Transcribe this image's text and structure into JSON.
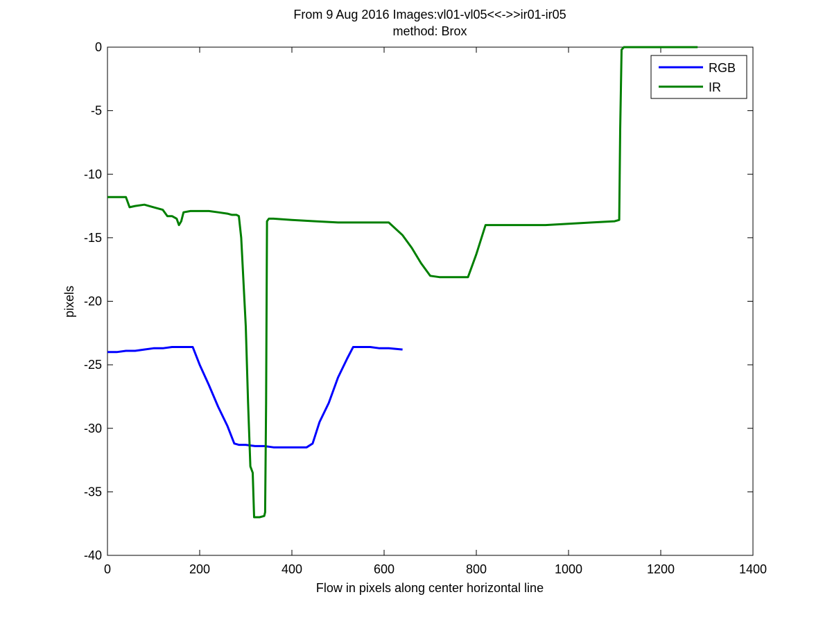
{
  "chart_data": {
    "type": "line",
    "title": "From 9 Aug 2016 Images:vl01-vl05<<->>ir01-ir05",
    "subtitle": "method: Brox",
    "xlabel": "Flow in pixels along center horizontal line",
    "ylabel": "pixels",
    "xlim": [
      0,
      1400
    ],
    "ylim": [
      -40,
      0
    ],
    "xticks": [
      0,
      200,
      400,
      600,
      800,
      1000,
      1200,
      1400
    ],
    "yticks": [
      0,
      -5,
      -10,
      -15,
      -20,
      -25,
      -30,
      -35,
      -40
    ],
    "grid": false,
    "legend_position": "top-right",
    "series": [
      {
        "name": "RGB",
        "color": "#0000ff",
        "x": [
          0,
          20,
          40,
          60,
          80,
          100,
          120,
          140,
          160,
          175,
          185,
          200,
          220,
          240,
          260,
          275,
          285,
          300,
          320,
          340,
          360,
          380,
          400,
          420,
          432,
          445,
          460,
          480,
          500,
          520,
          533,
          550,
          570,
          590,
          610,
          640
        ],
        "y": [
          -24.0,
          -24.0,
          -23.9,
          -23.9,
          -23.8,
          -23.7,
          -23.7,
          -23.6,
          -23.6,
          -23.6,
          -23.6,
          -25.0,
          -26.6,
          -28.3,
          -29.8,
          -31.2,
          -31.3,
          -31.3,
          -31.4,
          -31.4,
          -31.5,
          -31.5,
          -31.5,
          -31.5,
          -31.5,
          -31.2,
          -29.5,
          -28.0,
          -26.0,
          -24.5,
          -23.6,
          -23.6,
          -23.6,
          -23.7,
          -23.7,
          -23.8
        ]
      },
      {
        "name": "IR",
        "color": "#007f00",
        "x": [
          0,
          40,
          48,
          60,
          80,
          100,
          120,
          130,
          140,
          150,
          155,
          160,
          165,
          180,
          200,
          220,
          240,
          260,
          270,
          280,
          285,
          290,
          300,
          305,
          310,
          315,
          318,
          320,
          330,
          340,
          342,
          344,
          346,
          350,
          360,
          400,
          450,
          500,
          550,
          610,
          640,
          660,
          680,
          700,
          720,
          740,
          760,
          782,
          800,
          820,
          860,
          900,
          950,
          1000,
          1050,
          1100,
          1110,
          1112,
          1115,
          1120,
          1150,
          1200,
          1280
        ],
        "y": [
          -11.8,
          -11.8,
          -12.6,
          -12.5,
          -12.4,
          -12.6,
          -12.8,
          -13.3,
          -13.3,
          -13.5,
          -14.0,
          -13.7,
          -13.0,
          -12.9,
          -12.9,
          -12.9,
          -13.0,
          -13.1,
          -13.2,
          -13.2,
          -13.3,
          -15.0,
          -22.0,
          -28.0,
          -33.0,
          -33.5,
          -37.0,
          -37.0,
          -37.0,
          -36.9,
          -36.6,
          -28.0,
          -13.7,
          -13.5,
          -13.5,
          -13.6,
          -13.7,
          -13.8,
          -13.8,
          -13.8,
          -14.8,
          -15.8,
          -17.0,
          -18.0,
          -18.1,
          -18.1,
          -18.1,
          -18.1,
          -16.3,
          -14.0,
          -14.0,
          -14.0,
          -14.0,
          -13.9,
          -13.8,
          -13.7,
          -13.6,
          -6.5,
          -0.2,
          0.0,
          0.0,
          0.0,
          0.0
        ]
      }
    ]
  }
}
